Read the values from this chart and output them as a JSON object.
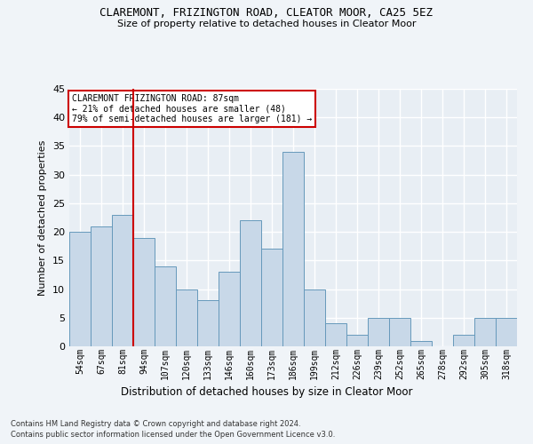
{
  "title1": "CLAREMONT, FRIZINGTON ROAD, CLEATOR MOOR, CA25 5EZ",
  "title2": "Size of property relative to detached houses in Cleator Moor",
  "xlabel": "Distribution of detached houses by size in Cleator Moor",
  "ylabel": "Number of detached properties",
  "categories": [
    "54sqm",
    "67sqm",
    "81sqm",
    "94sqm",
    "107sqm",
    "120sqm",
    "133sqm",
    "146sqm",
    "160sqm",
    "173sqm",
    "186sqm",
    "199sqm",
    "212sqm",
    "226sqm",
    "239sqm",
    "252sqm",
    "265sqm",
    "278sqm",
    "292sqm",
    "305sqm",
    "318sqm"
  ],
  "values": [
    20,
    21,
    23,
    19,
    14,
    10,
    8,
    13,
    22,
    17,
    34,
    10,
    4,
    2,
    5,
    5,
    1,
    0,
    2,
    5,
    5
  ],
  "bar_color": "#c8d8e8",
  "bar_edge_color": "#6699bb",
  "background_color": "#e8eef4",
  "grid_color": "#ffffff",
  "fig_background": "#f0f4f8",
  "red_line_x": 2.5,
  "annotation_text": "CLAREMONT FRIZINGTON ROAD: 87sqm\n← 21% of detached houses are smaller (48)\n79% of semi-detached houses are larger (181) →",
  "annotation_box_color": "#ffffff",
  "annotation_box_edge": "#cc0000",
  "ylim": [
    0,
    45
  ],
  "yticks": [
    0,
    5,
    10,
    15,
    20,
    25,
    30,
    35,
    40,
    45
  ],
  "footnote1": "Contains HM Land Registry data © Crown copyright and database right 2024.",
  "footnote2": "Contains public sector information licensed under the Open Government Licence v3.0."
}
